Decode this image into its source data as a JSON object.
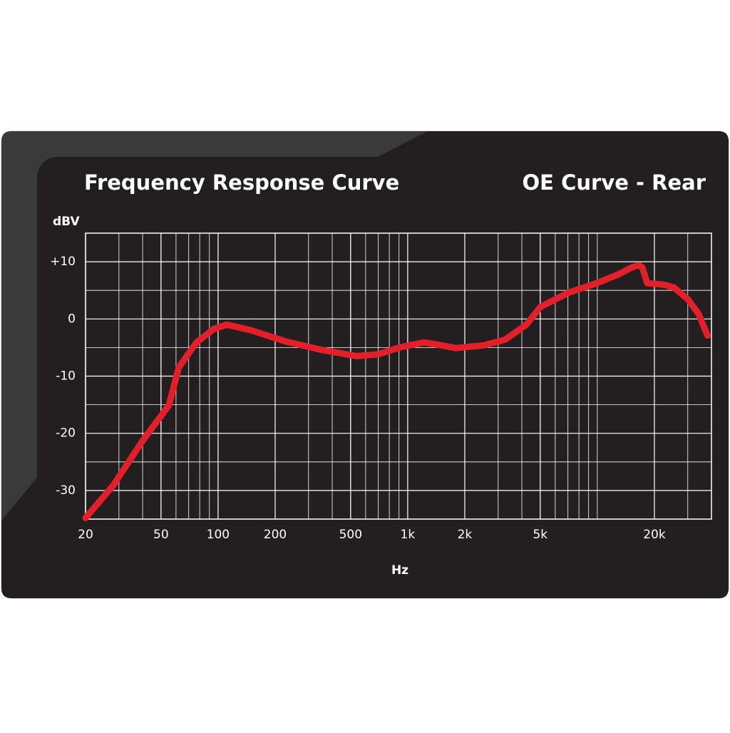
{
  "chart_data": {
    "type": "line",
    "title": "Frequency Response Curve",
    "subtitle": "OE Curve - Rear",
    "ylabel": "dBV",
    "xlabel": "Hz",
    "xscale": "log",
    "xlim": [
      20,
      40000
    ],
    "ylim": [
      -35,
      15
    ],
    "xticks": [
      20,
      50,
      100,
      200,
      500,
      {
        "value": 1000,
        "label": "1k"
      },
      {
        "value": 2000,
        "label": "2k"
      },
      {
        "value": 5000,
        "label": "5k"
      },
      {
        "value": 20000,
        "label": "20k"
      }
    ],
    "yticks": [
      -30,
      -20,
      -10,
      0,
      {
        "value": 10,
        "label": "+10"
      }
    ],
    "grid": true,
    "x": [
      20,
      28,
      40,
      55,
      62,
      77,
      95,
      111,
      146,
      226,
      349,
      538,
      698,
      901,
      1222,
      1447,
      1793,
      2534,
      3274,
      4227,
      5010,
      7060,
      9930,
      12830,
      15200,
      16560,
      17270,
      18340,
      22320,
      25370,
      30100,
      34200,
      38150
    ],
    "series": [
      {
        "name": "OE Curve - Rear",
        "color": "#e3202a",
        "values": [
          -34.8,
          -29.1,
          -21.3,
          -15.1,
          -8.5,
          -4.1,
          -1.75,
          -1.0,
          -1.9,
          -3.9,
          -5.4,
          -6.5,
          -6.2,
          -5.0,
          -4.1,
          -4.5,
          -5.1,
          -4.6,
          -3.6,
          -1.0,
          2.1,
          4.6,
          6.25,
          7.75,
          9.0,
          9.4,
          9.0,
          6.25,
          6.0,
          5.5,
          3.4,
          0.9,
          -2.9
        ]
      }
    ]
  }
}
